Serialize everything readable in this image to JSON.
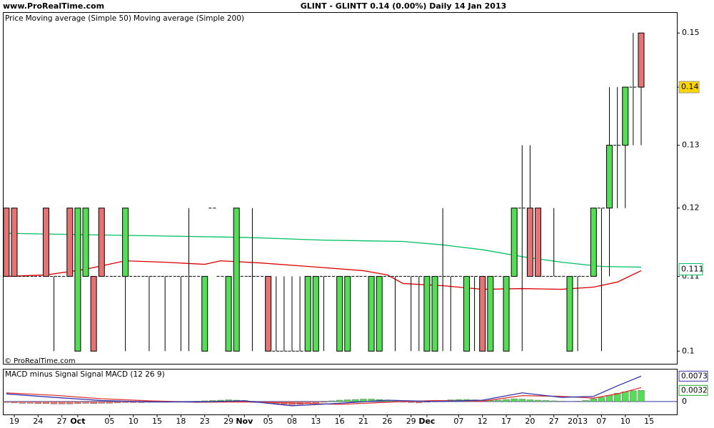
{
  "source": "www.ProRealTime.com",
  "copyright": "© ProRealTime.com",
  "chart_data": [
    {
      "type": "candlestick",
      "title": "GLINT - GLINTT   0.14 (0.00%)   Daily  14 Jan 2013",
      "legend_label": "Price",
      "log_scale": true,
      "ylim": [
        0.0984,
        0.1539
      ],
      "yticks": [
        0.1,
        0.11,
        0.12,
        0.13,
        0.14,
        0.15
      ],
      "xlim": [
        -0.35,
        84.5
      ],
      "up_color": "#55dd55",
      "down_color": "#e57373",
      "last_price": 0.14,
      "last_ma_label": 0.111,
      "candles": [
        [
          0.12,
          0.12,
          0.11,
          0.11
        ],
        [
          0.12,
          0.12,
          0.11,
          0.11
        ],
        [
          0.11,
          0.11,
          0.11,
          0.11
        ],
        [
          0.11,
          0.11,
          0.11,
          0.11
        ],
        [
          0.11,
          0.11,
          0.11,
          0.11
        ],
        [
          0.12,
          0.12,
          0.11,
          0.11
        ],
        [
          0.11,
          0.11,
          0.1,
          0.11
        ],
        [
          0.11,
          0.11,
          0.11,
          0.11
        ],
        [
          0.12,
          0.12,
          0.11,
          0.11
        ],
        [
          0.1,
          0.12,
          0.1,
          0.12
        ],
        [
          0.11,
          0.12,
          0.11,
          0.12
        ],
        [
          0.11,
          0.11,
          0.1,
          0.1
        ],
        [
          0.12,
          0.12,
          0.11,
          0.11
        ],
        [
          0.11,
          0.11,
          0.11,
          0.11
        ],
        [
          0.11,
          0.11,
          0.11,
          0.11
        ],
        [
          0.11,
          0.12,
          0.1,
          0.12
        ],
        [
          0.11,
          0.11,
          0.11,
          0.11
        ],
        [
          0.11,
          0.11,
          0.11,
          0.11
        ],
        [
          0.11,
          0.11,
          0.1,
          0.11
        ],
        [
          0.11,
          0.11,
          0.11,
          0.11
        ],
        [
          0.11,
          0.11,
          0.1,
          0.11
        ],
        [
          0.11,
          0.11,
          0.11,
          0.11
        ],
        [
          0.11,
          0.11,
          0.1,
          0.11
        ],
        [
          0.11,
          0.12,
          0.1,
          0.11
        ],
        [
          0.11,
          0.11,
          0.11,
          0.11
        ],
        [
          0.1,
          0.11,
          0.1,
          0.11
        ],
        [
          0.12,
          0.12,
          0.12,
          0.12
        ],
        [
          0.11,
          0.11,
          0.11,
          0.11
        ],
        [
          0.1,
          0.11,
          0.1,
          0.11
        ],
        [
          0.1,
          0.12,
          0.1,
          0.12
        ],
        [
          0.11,
          0.11,
          0.11,
          0.11
        ],
        [
          0.11,
          0.12,
          0.1,
          0.11
        ],
        [
          0.11,
          0.11,
          0.11,
          0.11
        ],
        [
          0.11,
          0.11,
          0.1,
          0.1
        ],
        [
          0.1,
          0.11,
          0.1,
          0.1
        ],
        [
          0.1,
          0.11,
          0.1,
          0.1
        ],
        [
          0.1,
          0.11,
          0.1,
          0.1
        ],
        [
          0.1,
          0.11,
          0.1,
          0.1
        ],
        [
          0.1,
          0.11,
          0.1,
          0.11
        ],
        [
          0.1,
          0.11,
          0.1,
          0.11
        ],
        [
          0.11,
          0.11,
          0.1,
          0.11
        ],
        [
          0.11,
          0.11,
          0.11,
          0.11
        ],
        [
          0.1,
          0.11,
          0.1,
          0.11
        ],
        [
          0.1,
          0.11,
          0.1,
          0.11
        ],
        [
          0.11,
          0.11,
          0.11,
          0.11
        ],
        [
          0.11,
          0.11,
          0.11,
          0.11
        ],
        [
          0.1,
          0.11,
          0.1,
          0.11
        ],
        [
          0.1,
          0.11,
          0.1,
          0.11
        ],
        [
          0.11,
          0.11,
          0.11,
          0.11
        ],
        [
          0.11,
          0.11,
          0.1,
          0.11
        ],
        [
          0.11,
          0.11,
          0.11,
          0.11
        ],
        [
          0.11,
          0.11,
          0.1,
          0.11
        ],
        [
          0.11,
          0.11,
          0.1,
          0.11
        ],
        [
          0.1,
          0.11,
          0.1,
          0.11
        ],
        [
          0.1,
          0.11,
          0.1,
          0.11
        ],
        [
          0.11,
          0.12,
          0.1,
          0.11
        ],
        [
          0.11,
          0.11,
          0.1,
          0.11
        ],
        [
          0.11,
          0.11,
          0.11,
          0.11
        ],
        [
          0.1,
          0.11,
          0.1,
          0.11
        ],
        [
          0.11,
          0.11,
          0.1,
          0.11
        ],
        [
          0.11,
          0.11,
          0.1,
          0.1
        ],
        [
          0.1,
          0.11,
          0.1,
          0.11
        ],
        [
          0.11,
          0.11,
          0.11,
          0.11
        ],
        [
          0.1,
          0.11,
          0.1,
          0.11
        ],
        [
          0.11,
          0.12,
          0.11,
          0.12
        ],
        [
          0.12,
          0.13,
          0.1,
          0.12
        ],
        [
          0.12,
          0.13,
          0.11,
          0.11
        ],
        [
          0.12,
          0.12,
          0.11,
          0.11
        ],
        [
          0.11,
          0.11,
          0.11,
          0.11
        ],
        [
          0.11,
          0.12,
          0.11,
          0.11
        ],
        [
          0.11,
          0.11,
          0.11,
          0.11
        ],
        [
          0.1,
          0.11,
          0.1,
          0.11
        ],
        [
          0.11,
          0.11,
          0.1,
          0.11
        ],
        [
          0.11,
          0.11,
          0.11,
          0.11
        ],
        [
          0.11,
          0.12,
          0.11,
          0.12
        ],
        [
          0.12,
          0.12,
          0.1,
          0.12
        ],
        [
          0.12,
          0.14,
          0.11,
          0.13
        ],
        [
          0.13,
          0.14,
          0.12,
          0.13
        ],
        [
          0.13,
          0.14,
          0.12,
          0.14
        ],
        [
          0.14,
          0.15,
          0.13,
          0.14
        ],
        [
          0.15,
          0.15,
          0.13,
          0.14
        ]
      ],
      "series": [
        {
          "name": "Moving average (Simple 50)",
          "color": "#dd0000",
          "x": [
            0,
            5,
            10,
            15,
            20,
            25,
            27,
            32,
            38,
            45,
            48,
            50,
            55,
            60,
            65,
            70,
            74,
            77,
            80
          ],
          "values": [
            0.11,
            0.1102,
            0.111,
            0.1122,
            0.112,
            0.1117,
            0.1122,
            0.1119,
            0.1114,
            0.1108,
            0.1102,
            0.109,
            0.1087,
            0.1082,
            0.1083,
            0.1082,
            0.1085,
            0.1092,
            0.1108
          ]
        },
        {
          "name": "Moving average (Simple 200)",
          "color": "#00c060",
          "x": [
            0,
            10,
            20,
            30,
            40,
            50,
            55,
            60,
            65,
            70,
            75,
            80
          ],
          "values": [
            0.1162,
            0.116,
            0.1158,
            0.1156,
            0.1152,
            0.115,
            0.1145,
            0.1138,
            0.1128,
            0.112,
            0.1114,
            0.1113
          ]
        }
      ]
    },
    {
      "type": "macd",
      "ylim": [
        -0.0037,
        0.0092
      ],
      "yticks": [
        0
      ],
      "xlim": [
        -0.35,
        84.5
      ],
      "xticks": [
        {
          "value": 1,
          "label": "19"
        },
        {
          "value": 4,
          "label": "24"
        },
        {
          "value": 7,
          "label": "27"
        },
        {
          "value": 9,
          "label": "Oct"
        },
        {
          "value": 13,
          "label": "05"
        },
        {
          "value": 16,
          "label": "10"
        },
        {
          "value": 19,
          "label": "15"
        },
        {
          "value": 22,
          "label": "18"
        },
        {
          "value": 25,
          "label": "23"
        },
        {
          "value": 28,
          "label": "29"
        },
        {
          "value": 30,
          "label": "Nov"
        },
        {
          "value": 33,
          "label": "05"
        },
        {
          "value": 36,
          "label": "08"
        },
        {
          "value": 39,
          "label": "13"
        },
        {
          "value": 42,
          "label": "16"
        },
        {
          "value": 45,
          "label": "21"
        },
        {
          "value": 48,
          "label": "26"
        },
        {
          "value": 51,
          "label": "29"
        },
        {
          "value": 53,
          "label": "Dec"
        },
        {
          "value": 57,
          "label": "07"
        },
        {
          "value": 60,
          "label": "12"
        },
        {
          "value": 63,
          "label": "17"
        },
        {
          "value": 66,
          "label": "20"
        },
        {
          "value": 69,
          "label": "27"
        },
        {
          "value": 72,
          "label": "2013"
        },
        {
          "value": 75,
          "label": "07"
        },
        {
          "value": 78,
          "label": "10"
        },
        {
          "value": 81,
          "label": "15"
        }
      ],
      "histogram": {
        "name": "MACD minus Signal",
        "color": "#55dd55",
        "negative_color": "#e57373",
        "values": [
          -0.0003,
          -0.0004,
          -0.0005,
          -0.0005,
          -0.0006,
          -0.0006,
          -0.0007,
          -0.0007,
          -0.0007,
          -0.0006,
          -0.0005,
          -0.0006,
          -0.0005,
          -0.0005,
          -0.0004,
          -0.0003,
          -0.0003,
          -0.0003,
          -0.0002,
          -0.0002,
          -0.0002,
          -0.0001,
          -0.0001,
          0,
          0.0001,
          0.0002,
          0.0003,
          0.0004,
          0.0005,
          0.0004,
          0.0003,
          0.0001,
          -0.0002,
          -0.0005,
          -0.0007,
          -0.0008,
          -0.0009,
          -0.0008,
          -0.0006,
          -0.0004,
          -0.0002,
          0.0002,
          0.0004,
          0.0005,
          0.0006,
          0.0007,
          0.0007,
          0.0006,
          0.0004,
          0.0001,
          -0.0002,
          -0.0003,
          -0.0004,
          -0.0002,
          0.0001,
          0.0003,
          0.0005,
          0.0006,
          0.0006,
          0.0005,
          0.0004,
          0.0003,
          0.0004,
          0.0006,
          0.0008,
          0.0007,
          0.0005,
          0.0004,
          0.0003,
          0.0002,
          0.0001,
          0,
          0.0001,
          0.0003,
          0.0008,
          0.0012,
          0.0018,
          0.0024,
          0.0028,
          0.0031,
          0.0032
        ]
      },
      "series": [
        {
          "name": "Signal",
          "color": "#dd3333",
          "x": [
            0,
            6,
            12,
            18,
            24,
            30,
            36,
            42,
            48,
            54,
            60,
            65,
            70,
            74,
            77,
            80
          ],
          "values": [
            0.0025,
            0.0018,
            0.0008,
            0.0002,
            -0.0002,
            -0.0001,
            -0.0004,
            -0.0008,
            -0.0002,
            0.0003,
            0.0001,
            0.0017,
            0.0015,
            0.001,
            0.0022,
            0.004
          ]
        },
        {
          "name": "MACD (12 26 9)",
          "color": "#3333aa",
          "x": [
            0,
            6,
            12,
            18,
            24,
            30,
            36,
            42,
            48,
            54,
            60,
            65,
            70,
            74,
            77,
            80
          ],
          "values": [
            0.0022,
            0.0012,
            0.0003,
            -0.0001,
            -0.0001,
            0.0002,
            -0.0012,
            -0.0005,
            0.0004,
            0,
            0.0004,
            0.0025,
            0.0012,
            0.0015,
            0.0045,
            0.0073
          ]
        }
      ],
      "last_labels": [
        {
          "value": 0.0073,
          "color": "#3333aa"
        },
        {
          "value": 0.0032,
          "color": "#22aa22"
        }
      ]
    }
  ]
}
